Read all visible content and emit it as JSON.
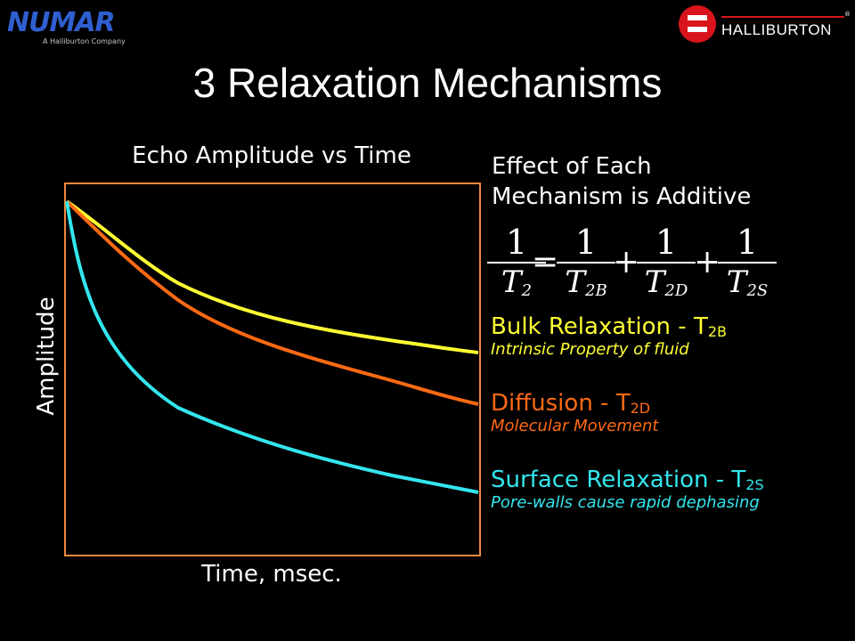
{
  "logos": {
    "left_wordmark": "NUMAR",
    "left_tagline": "A Halliburton Company",
    "right_wordmark": "HALLIBURTON",
    "right_reg": "®"
  },
  "title": "3 Relaxation Mechanisms",
  "graph": {
    "heading": "Echo Amplitude vs Time",
    "x_label": "Time, msec.",
    "y_label": "Amplitude",
    "frame_color": "#f0883c"
  },
  "effect": {
    "line1": "Effect of Each",
    "line2": "Mechanism is Additive"
  },
  "equation": {
    "numerator": "1",
    "lhs_denominator": "T",
    "lhs_subscript": "2",
    "equals": "=",
    "plus": "+",
    "terms": [
      {
        "denominator": "T",
        "subscript": "2B"
      },
      {
        "denominator": "T",
        "subscript": "2D"
      },
      {
        "denominator": "T",
        "subscript": "2S"
      }
    ]
  },
  "mechanisms": [
    {
      "title": "Bulk Relaxation - T",
      "subscript": "2B",
      "description": "Intrinsic Property of fluid",
      "color": "#ffff33"
    },
    {
      "title": "Diffusion - T",
      "subscript": "2D",
      "description": "Molecular Movement",
      "color": "#ff6a14"
    },
    {
      "title": "Surface Relaxation - T",
      "subscript": "2S",
      "description": "Pore-walls cause rapid dephasing",
      "color": "#33e6ee"
    }
  ]
}
